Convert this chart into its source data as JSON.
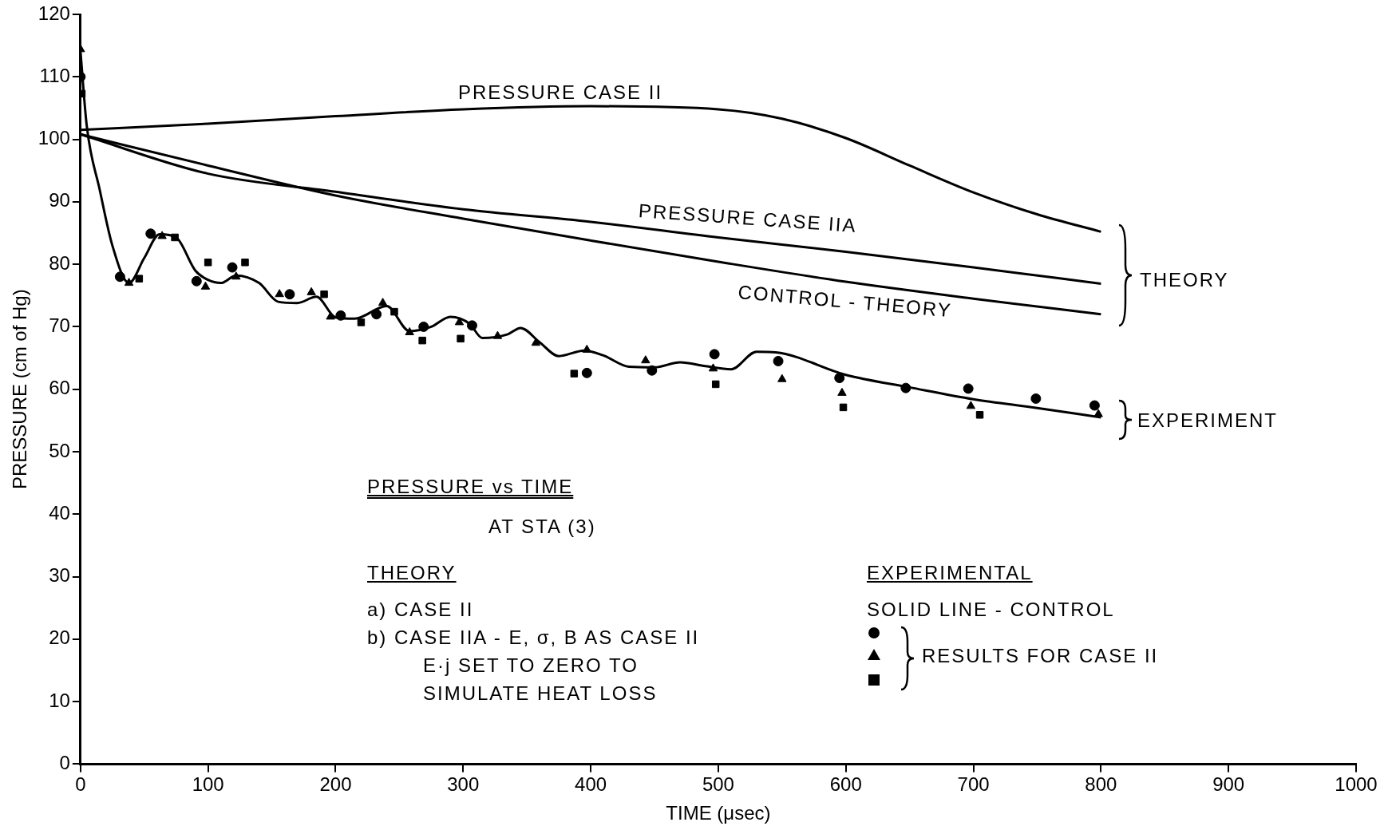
{
  "chart_data": {
    "type": "line",
    "title": "PRESSURE vs TIME",
    "subtitle": "AT STA (3)",
    "xlabel": "TIME (μsec)",
    "ylabel": "PRESSURE (cm of Hg)",
    "xlim": [
      0,
      1000
    ],
    "xticks": [
      0,
      100,
      200,
      300,
      400,
      500,
      600,
      700,
      800,
      900,
      1000
    ],
    "ylim": [
      0,
      120
    ],
    "yticks": [
      0,
      10,
      20,
      30,
      40,
      50,
      60,
      70,
      80,
      90,
      100,
      110,
      120
    ],
    "grid": false,
    "legend": false,
    "series": [
      {
        "color": "#000000",
        "marker": "none",
        "x": [
          0,
          100,
          200,
          300,
          400,
          500,
          550,
          600,
          650,
          700,
          750,
          800
        ],
        "values": [
          101.5,
          102.5,
          103.7,
          104.8,
          105.3,
          104.8,
          103.3,
          100.2,
          95.8,
          91.5,
          88,
          85.2
        ]
      },
      {
        "color": "#000000",
        "marker": "none",
        "x": [
          0,
          100,
          200,
          300,
          400,
          500,
          600,
          700,
          800
        ],
        "values": [
          100.8,
          94.5,
          91.6,
          88.8,
          86.8,
          84.3,
          82,
          79.5,
          76.9
        ]
      },
      {
        "color": "#000000",
        "marker": "none",
        "x": [
          0,
          100,
          200,
          300,
          400,
          500,
          600,
          700,
          800
        ],
        "values": [
          100.8,
          95.8,
          91,
          87.3,
          83.8,
          80.4,
          77.2,
          74.5,
          72
        ]
      },
      {
        "color": "#000000",
        "marker": "none",
        "x": [
          0,
          5,
          15,
          25,
          38,
          50,
          62,
          75,
          90,
          100,
          110,
          122,
          140,
          155,
          170,
          185,
          200,
          215,
          240,
          258,
          275,
          290,
          305,
          315,
          335,
          345,
          360,
          375,
          395,
          410,
          430,
          450,
          470,
          490,
          510,
          530,
          545,
          600,
          650,
          700,
          750,
          800
        ],
        "values": [
          114,
          102,
          92,
          83,
          77,
          81,
          84.8,
          84.3,
          79,
          77.5,
          77,
          78.2,
          77,
          74,
          73.8,
          74.8,
          71.5,
          71.3,
          73.3,
          69.3,
          70,
          71.6,
          70.5,
          68.2,
          68.8,
          69.8,
          67.5,
          65.3,
          66.2,
          65.4,
          63.6,
          63.5,
          64.3,
          63.7,
          63.2,
          66,
          65.9,
          62.3,
          60.3,
          58.4,
          57,
          55.5
        ]
      },
      {
        "type": "scatter",
        "color": "#000000",
        "marker": "circle",
        "x": [
          0,
          31,
          55,
          91,
          119,
          164,
          204,
          232,
          269,
          307,
          397,
          448,
          497,
          547,
          595,
          647,
          696,
          749,
          795
        ],
        "values": [
          110,
          78,
          84.9,
          77.3,
          79.5,
          75.2,
          71.8,
          72,
          70,
          70.2,
          62.6,
          63,
          65.6,
          64.5,
          61.8,
          60.2,
          60.1,
          58.5,
          57.4
        ]
      },
      {
        "type": "scatter",
        "color": "#000000",
        "marker": "triangle",
        "x": [
          0,
          38,
          64,
          98,
          122,
          156,
          181,
          196,
          237,
          258,
          297,
          327,
          357,
          397,
          443,
          496,
          550,
          597,
          698,
          798
        ],
        "values": [
          114.4,
          77,
          84.5,
          76.4,
          78,
          75.2,
          75.5,
          71.6,
          73.8,
          69.1,
          70.7,
          68.5,
          67.4,
          66.3,
          64.6,
          63.3,
          61.6,
          59.4,
          57.3,
          56
        ]
      },
      {
        "type": "scatter",
        "color": "#000000",
        "marker": "square",
        "x": [
          1,
          46,
          74,
          100,
          129,
          191,
          220,
          246,
          268,
          298,
          387,
          498,
          598,
          705
        ],
        "values": [
          107.3,
          77.7,
          84.3,
          80.3,
          80.3,
          75.2,
          70.7,
          72.4,
          67.8,
          68.1,
          62.5,
          60.8,
          57.1,
          55.9
        ]
      }
    ],
    "annotations": [
      "PRESSURE CASE II",
      "PRESSURE CASE IIA",
      "CONTROL - THEORY",
      "THEORY",
      "a) CASE II",
      "b) CASE IIA - E, σ, B AS CASE II",
      "E·j SET TO ZERO TO",
      "SIMULATE HEAT LOSS",
      "EXPERIMENTAL",
      "SOLID LINE - CONTROL",
      "RESULTS FOR CASE II",
      "THEORY",
      "EXPERIMENT"
    ]
  }
}
